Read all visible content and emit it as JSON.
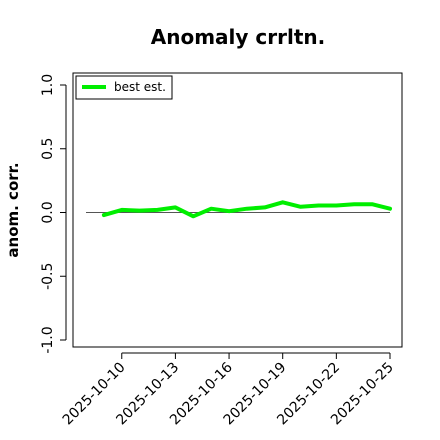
{
  "chart_data": {
    "type": "line",
    "title": "Anomaly crrltn.",
    "xlabel": "",
    "ylabel": "anom. corr.",
    "ylim": [
      -1.0,
      1.0
    ],
    "yticks": [
      -1.0,
      -0.5,
      0.0,
      0.5,
      1.0
    ],
    "ytick_labels": [
      "-1.0",
      "-0.5",
      "0.0",
      "0.5",
      "1.0"
    ],
    "xlim": [
      "2025-10-08",
      "2025-10-25"
    ],
    "xticks": [
      "2025-10-10",
      "2025-10-13",
      "2025-10-16",
      "2025-10-19",
      "2025-10-22",
      "2025-10-25"
    ],
    "x": [
      "2025-10-09",
      "2025-10-10",
      "2025-10-11",
      "2025-10-12",
      "2025-10-13",
      "2025-10-14",
      "2025-10-15",
      "2025-10-16",
      "2025-10-17",
      "2025-10-18",
      "2025-10-19",
      "2025-10-20",
      "2025-10-21",
      "2025-10-22",
      "2025-10-23",
      "2025-10-24",
      "2025-10-25"
    ],
    "series": [
      {
        "name": "best est.",
        "color": "#00ee00",
        "values": [
          -0.02,
          0.02,
          0.015,
          0.02,
          0.04,
          -0.03,
          0.03,
          0.01,
          0.03,
          0.04,
          0.08,
          0.045,
          0.055,
          0.055,
          0.065,
          0.065,
          0.03
        ]
      }
    ],
    "reference_line": 0.0,
    "legend": {
      "position": "top-left"
    },
    "grid": false
  }
}
